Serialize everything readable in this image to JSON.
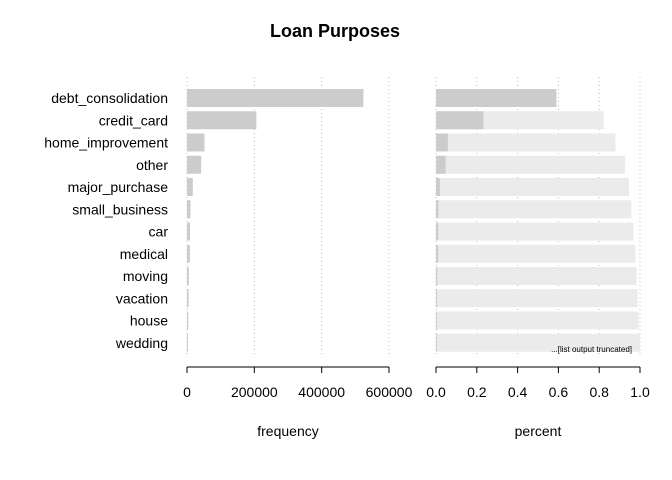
{
  "chart_data": {
    "type": "bar",
    "title": "Loan Purposes",
    "categories": [
      "debt_consolidation",
      "credit_card",
      "home_improvement",
      "other",
      "major_purchase",
      "small_business",
      "car",
      "medical",
      "moving",
      "vacation",
      "house",
      "wedding"
    ],
    "series": [
      {
        "panel": "frequency",
        "values": [
          524000,
          206000,
          52000,
          42000,
          17300,
          10300,
          8900,
          8500,
          5400,
          4700,
          3700,
          2300
        ]
      },
      {
        "panel": "percent",
        "values": [
          0.59,
          0.232,
          0.058,
          0.047,
          0.019,
          0.012,
          0.01,
          0.01,
          0.006,
          0.005,
          0.004,
          0.003
        ],
        "cumulative": [
          0.59,
          0.822,
          0.88,
          0.927,
          0.946,
          0.958,
          0.968,
          0.977,
          0.983,
          0.988,
          0.993,
          1.0
        ]
      }
    ],
    "panels": [
      {
        "xlabel": "frequency",
        "xlim": [
          0,
          600000
        ],
        "ticks": [
          0,
          200000,
          400000,
          600000
        ],
        "tick_labels": [
          "0",
          "200000",
          "400000",
          "600000"
        ]
      },
      {
        "xlabel": "percent",
        "xlim": [
          0,
          1
        ],
        "ticks": [
          0,
          0.2,
          0.4,
          0.6,
          0.8,
          1.0
        ],
        "tick_labels": [
          "0.0",
          "0.2",
          "0.4",
          "0.6",
          "0.8",
          "1.0"
        ]
      }
    ],
    "annotation": "...[list output truncated]",
    "grid": "vertical-dotted",
    "colors": {
      "bar": "#cccccc",
      "cumulative": "#ebebeb",
      "grid": "#bbbbbb"
    }
  }
}
